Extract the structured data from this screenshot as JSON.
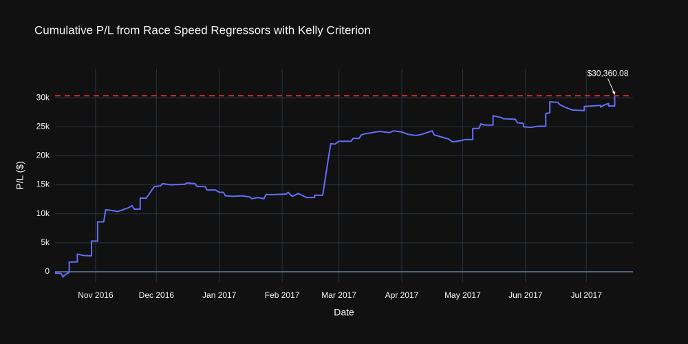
{
  "chart_data": {
    "type": "line",
    "title": "Cumulative P/L from Race Speed Regressors with Kelly Criterion",
    "x_label": "Date",
    "y_label": "P/L ($)",
    "color": "#636efa",
    "x": [
      "2016-10-12",
      "2016-10-15",
      "2016-10-16",
      "2016-10-17",
      "2016-10-19",
      "2016-10-19",
      "2016-10-23",
      "2016-10-23",
      "2016-10-26",
      "2016-10-30",
      "2016-10-30",
      "2016-11-02",
      "2016-11-02",
      "2016-11-05",
      "2016-11-06",
      "2016-11-08",
      "2016-11-12",
      "2016-11-17",
      "2016-11-19",
      "2016-11-20",
      "2016-11-23",
      "2016-11-23",
      "2016-11-26",
      "2016-11-30",
      "2016-12-03",
      "2016-12-04",
      "2016-12-08",
      "2016-12-15",
      "2016-12-16",
      "2016-12-20",
      "2016-12-21",
      "2016-12-25",
      "2016-12-26",
      "2016-12-30",
      "2017-01-01",
      "2017-01-03",
      "2017-01-04",
      "2017-01-08",
      "2017-01-12",
      "2017-01-16",
      "2017-01-17",
      "2017-01-20",
      "2017-01-23",
      "2017-01-24",
      "2017-01-28",
      "2017-02-03",
      "2017-02-04",
      "2017-02-06",
      "2017-02-09",
      "2017-02-13",
      "2017-02-17",
      "2017-02-17",
      "2017-02-21",
      "2017-02-24",
      "2017-02-25",
      "2017-02-27",
      "2017-03-01",
      "2017-03-07",
      "2017-03-08",
      "2017-03-11",
      "2017-03-12",
      "2017-03-14",
      "2017-03-21",
      "2017-03-26",
      "2017-03-28",
      "2017-04-01",
      "2017-04-04",
      "2017-04-08",
      "2017-04-11",
      "2017-04-16",
      "2017-04-17",
      "2017-04-20",
      "2017-04-24",
      "2017-04-26",
      "2017-04-30",
      "2017-05-02",
      "2017-05-06",
      "2017-05-06",
      "2017-05-09",
      "2017-05-10",
      "2017-05-12",
      "2017-05-16",
      "2017-05-16",
      "2017-05-20",
      "2017-05-21",
      "2017-05-27",
      "2017-05-28",
      "2017-05-31",
      "2017-05-31",
      "2017-06-04",
      "2017-06-07",
      "2017-06-11",
      "2017-06-11",
      "2017-06-13",
      "2017-06-13",
      "2017-06-17",
      "2017-06-18",
      "2017-06-21",
      "2017-06-24",
      "2017-06-30",
      "2017-06-30",
      "2017-07-08",
      "2017-07-08",
      "2017-07-10",
      "2017-07-12",
      "2017-07-12",
      "2017-07-15",
      "2017-07-15"
    ],
    "values": [
      -240,
      -300,
      -900,
      -500,
      -100,
      1660,
      1700,
      3050,
      2800,
      2750,
      5300,
      5300,
      8600,
      8600,
      10700,
      10600,
      10400,
      11000,
      11400,
      10800,
      10800,
      12700,
      12700,
      14700,
      14800,
      15200,
      15000,
      15100,
      15300,
      15200,
      14700,
      14700,
      14100,
      14100,
      13700,
      13700,
      13100,
      13000,
      13100,
      12900,
      12600,
      12800,
      12600,
      13300,
      13300,
      13400,
      13700,
      13000,
      13500,
      12800,
      12800,
      13200,
      13200,
      20000,
      22100,
      22000,
      22500,
      22500,
      23000,
      23000,
      23600,
      23800,
      24200,
      24000,
      24300,
      24100,
      23700,
      23500,
      23700,
      24300,
      23600,
      23300,
      22900,
      22400,
      22600,
      22800,
      22800,
      24700,
      24700,
      25500,
      25300,
      25300,
      26900,
      26600,
      26400,
      26300,
      25700,
      25600,
      25000,
      24900,
      25100,
      25100,
      27300,
      27400,
      29300,
      29200,
      28800,
      28300,
      27900,
      27800,
      28500,
      28700,
      28400,
      28800,
      29000,
      28600,
      28600,
      30360.08
    ],
    "xlim": [
      "2016-10-12",
      "2017-07-24"
    ],
    "xticks": [
      {
        "value": "2016-11-01",
        "label": "Nov 2016"
      },
      {
        "value": "2016-12-01",
        "label": "Dec 2016"
      },
      {
        "value": "2017-01-01",
        "label": "Jan 2017"
      },
      {
        "value": "2017-02-01",
        "label": "Feb 2017"
      },
      {
        "value": "2017-03-01",
        "label": "Mar 2017"
      },
      {
        "value": "2017-04-01",
        "label": "Apr 2017"
      },
      {
        "value": "2017-05-01",
        "label": "May 2017"
      },
      {
        "value": "2017-06-01",
        "label": "Jun 2017"
      },
      {
        "value": "2017-07-01",
        "label": "Jul 2017"
      }
    ],
    "ylim": [
      -1780,
      35000
    ],
    "yticks": [
      0,
      {
        "value": 5000,
        "label": "5k"
      },
      {
        "value": 10000,
        "label": "10k"
      },
      {
        "value": 15000,
        "label": "15k"
      },
      {
        "value": 20000,
        "label": "20k"
      },
      {
        "value": 25000,
        "label": "25k"
      },
      {
        "value": 30000,
        "label": "30k"
      }
    ],
    "grid": true,
    "reference_line": {
      "value": 30360.08,
      "color": "#d62728"
    },
    "annotation": {
      "text": "$30,360.08",
      "x": "2017-07-15",
      "y": 30360.08
    }
  }
}
